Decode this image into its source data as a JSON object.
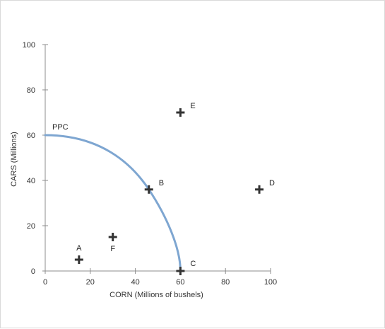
{
  "chart_data": {
    "type": "scatter",
    "xlabel": "CORN (Millions of bushels)",
    "ylabel": "CARS (Millions)",
    "xlim": [
      0,
      100
    ],
    "ylim": [
      0,
      100
    ],
    "xticks": [
      0,
      20,
      40,
      60,
      80,
      100
    ],
    "yticks": [
      0,
      20,
      40,
      60,
      80,
      100
    ],
    "grid": false,
    "curve": {
      "name": "PPC",
      "color": "#7ea6d1",
      "description_points": [
        {
          "x": 0,
          "y": 60
        },
        {
          "x": 46,
          "y": 36
        },
        {
          "x": 60,
          "y": 0
        }
      ]
    },
    "points": [
      {
        "label": "A",
        "x": 15,
        "y": 5
      },
      {
        "label": "B",
        "x": 46,
        "y": 36
      },
      {
        "label": "C",
        "x": 60,
        "y": 0
      },
      {
        "label": "D",
        "x": 95,
        "y": 36
      },
      {
        "label": "E",
        "x": 60,
        "y": 70
      },
      {
        "label": "F",
        "x": 30,
        "y": 15
      }
    ],
    "marker_color": "#333333"
  }
}
